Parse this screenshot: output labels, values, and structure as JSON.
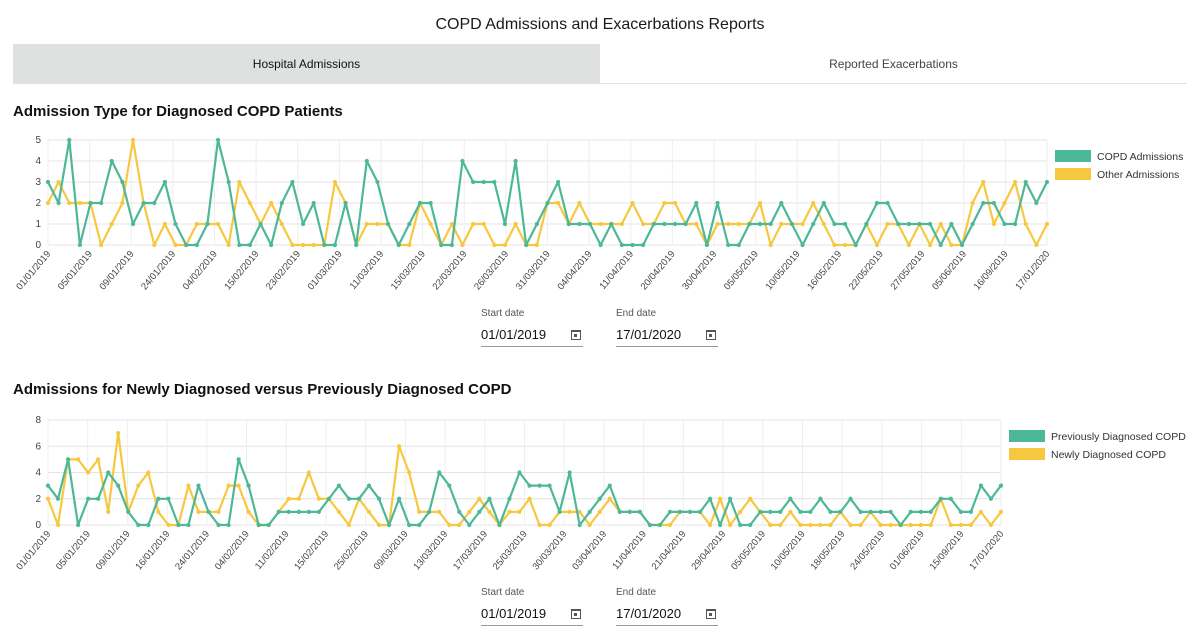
{
  "page": {
    "title": "COPD Admissions and Exacerbations Reports"
  },
  "tabs": [
    {
      "label": "Hospital Admissions",
      "active": true
    },
    {
      "label": "Reported Exacerbations",
      "active": false
    }
  ],
  "colors": {
    "green": "#4cb897",
    "yellow": "#f7c83f",
    "active_tab": "#dfe1e1"
  },
  "chart1": {
    "date_range": {
      "start_label": "Start date",
      "start_value": "01/01/2019",
      "end_label": "End date",
      "end_value": "17/01/2020"
    }
  },
  "chart2": {
    "date_range": {
      "start_label": "Start date",
      "start_value": "01/01/2019",
      "end_label": "End date",
      "end_value": "17/01/2020"
    }
  },
  "chart_data": [
    {
      "type": "line",
      "title": "Admission Type for Diagnosed COPD Patients",
      "ylim": [
        0,
        5
      ],
      "yticks": [
        0,
        1,
        2,
        3,
        4,
        5
      ],
      "grid": true,
      "legend_position": "right",
      "x_tick_labels": [
        "01/01/2019",
        "05/01/2019",
        "09/01/2019",
        "24/01/2019",
        "04/02/2019",
        "15/02/2019",
        "23/02/2019",
        "01/03/2019",
        "11/03/2019",
        "15/03/2019",
        "22/03/2019",
        "26/03/2019",
        "31/03/2019",
        "04/04/2019",
        "11/04/2019",
        "20/04/2019",
        "30/04/2019",
        "05/05/2019",
        "10/05/2019",
        "16/05/2019",
        "22/05/2019",
        "27/05/2019",
        "05/06/2019",
        "16/09/2019",
        "17/01/2020"
      ],
      "series": [
        {
          "name": "COPD Admissions",
          "color": "#4cb897",
          "values": [
            3,
            2,
            5,
            0,
            2,
            2,
            4,
            3,
            1,
            2,
            2,
            3,
            1,
            0,
            0,
            1,
            5,
            3,
            0,
            0,
            1,
            0,
            2,
            3,
            1,
            2,
            0,
            0,
            2,
            0,
            4,
            3,
            1,
            0,
            1,
            2,
            2,
            0,
            0,
            4,
            3,
            3,
            3,
            1,
            4,
            0,
            1,
            2,
            3,
            1,
            1,
            1,
            0,
            1,
            0,
            0,
            0,
            1,
            1,
            1,
            1,
            2,
            0,
            2,
            0,
            0,
            1,
            1,
            1,
            2,
            1,
            0,
            1,
            2,
            1,
            1,
            0,
            1,
            2,
            2,
            1,
            1,
            1,
            1,
            0,
            1,
            0,
            1,
            2,
            2,
            1,
            1,
            3,
            2,
            3
          ]
        },
        {
          "name": "Other Admissions",
          "color": "#f7c83f",
          "values": [
            2,
            3,
            2,
            2,
            2,
            0,
            1,
            2,
            5,
            2,
            0,
            1,
            0,
            0,
            1,
            1,
            1,
            0,
            3,
            2,
            1,
            2,
            1,
            0,
            0,
            0,
            0,
            3,
            2,
            0,
            1,
            1,
            1,
            0,
            0,
            2,
            1,
            0,
            1,
            0,
            1,
            1,
            0,
            0,
            1,
            0,
            0,
            2,
            2,
            1,
            2,
            1,
            1,
            1,
            1,
            2,
            1,
            1,
            2,
            2,
            1,
            1,
            0,
            1,
            1,
            1,
            1,
            2,
            0,
            1,
            1,
            1,
            2,
            1,
            0,
            0,
            0,
            1,
            0,
            1,
            1,
            0,
            1,
            0,
            1,
            0,
            0,
            2,
            3,
            1,
            2,
            3,
            1,
            0,
            1
          ]
        }
      ]
    },
    {
      "type": "line",
      "title": "Admissions for Newly Diagnosed versus Previously Diagnosed COPD",
      "ylim": [
        0,
        8
      ],
      "yticks": [
        0,
        2,
        4,
        6,
        8
      ],
      "grid": true,
      "legend_position": "right",
      "x_tick_labels": [
        "01/01/2019",
        "05/01/2019",
        "09/01/2019",
        "16/01/2019",
        "24/01/2019",
        "04/02/2019",
        "11/02/2019",
        "15/02/2019",
        "25/02/2019",
        "09/03/2019",
        "13/03/2019",
        "17/03/2019",
        "25/03/2019",
        "30/03/2019",
        "03/04/2019",
        "11/04/2019",
        "21/04/2019",
        "29/04/2019",
        "05/05/2019",
        "10/05/2019",
        "18/05/2019",
        "24/05/2019",
        "01/06/2019",
        "15/09/2019",
        "17/01/2020"
      ],
      "series": [
        {
          "name": "Previously Diagnosed COPD",
          "color": "#4cb897",
          "values": [
            3,
            2,
            5,
            0,
            2,
            2,
            4,
            3,
            1,
            0,
            0,
            2,
            2,
            0,
            0,
            3,
            1,
            0,
            0,
            5,
            3,
            0,
            0,
            1,
            1,
            1,
            1,
            1,
            2,
            3,
            2,
            2,
            3,
            2,
            0,
            2,
            0,
            0,
            1,
            4,
            3,
            1,
            0,
            1,
            2,
            0,
            2,
            4,
            3,
            3,
            3,
            1,
            4,
            0,
            1,
            2,
            3,
            1,
            1,
            1,
            0,
            0,
            1,
            1,
            1,
            1,
            2,
            0,
            2,
            0,
            0,
            1,
            1,
            1,
            2,
            1,
            1,
            2,
            1,
            1,
            2,
            1,
            1,
            1,
            1,
            0,
            1,
            1,
            1,
            2,
            2,
            1,
            1,
            3,
            2,
            3
          ]
        },
        {
          "name": "Newly Diagnosed COPD",
          "color": "#f7c83f",
          "values": [
            2,
            0,
            5,
            5,
            4,
            5,
            1,
            7,
            1,
            3,
            4,
            1,
            0,
            0,
            3,
            1,
            1,
            1,
            3,
            3,
            1,
            0,
            0,
            1,
            2,
            2,
            4,
            2,
            2,
            1,
            0,
            2,
            1,
            0,
            0,
            6,
            4,
            1,
            1,
            1,
            0,
            0,
            1,
            2,
            1,
            0,
            1,
            1,
            2,
            0,
            0,
            1,
            1,
            1,
            0,
            1,
            2,
            1,
            1,
            1,
            0,
            0,
            0,
            1,
            1,
            1,
            0,
            2,
            0,
            1,
            2,
            1,
            0,
            0,
            1,
            0,
            0,
            0,
            0,
            1,
            0,
            0,
            1,
            0,
            0,
            0,
            0,
            0,
            0,
            2,
            0,
            0,
            0,
            1,
            0,
            1
          ]
        }
      ]
    }
  ]
}
